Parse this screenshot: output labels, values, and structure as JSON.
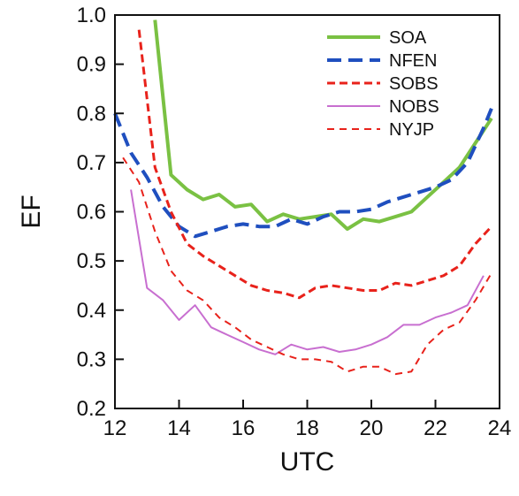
{
  "chart_data": {
    "type": "line",
    "xlabel": "UTC",
    "ylabel": "EF",
    "xlim": [
      12,
      24
    ],
    "ylim": [
      0.2,
      1.0
    ],
    "xticks": [
      "12",
      "14",
      "16",
      "18",
      "20",
      "22",
      "24"
    ],
    "yticks": [
      "0.2",
      "0.3",
      "0.4",
      "0.5",
      "0.6",
      "0.7",
      "0.8",
      "0.9",
      "1.0"
    ],
    "grid": false,
    "legend_position": "top-right",
    "series": [
      {
        "name": "SOA",
        "color": "#7ac143",
        "style": "solid",
        "x": [
          13.25,
          13.75,
          14.25,
          14.75,
          15.25,
          15.75,
          16.25,
          16.75,
          17.25,
          17.75,
          18.25,
          18.75,
          19.25,
          19.75,
          20.25,
          20.75,
          21.25,
          21.75,
          22.25,
          22.75,
          23.25,
          23.75
        ],
        "y": [
          0.99,
          0.675,
          0.645,
          0.625,
          0.635,
          0.61,
          0.615,
          0.58,
          0.595,
          0.585,
          0.59,
          0.595,
          0.565,
          0.585,
          0.58,
          0.59,
          0.6,
          0.63,
          0.66,
          0.69,
          0.74,
          0.79
        ]
      },
      {
        "name": "NFEN",
        "color": "#1f4fbf",
        "style": "dash",
        "x": [
          12.0,
          12.5,
          13.0,
          13.5,
          14.0,
          14.5,
          15.0,
          15.5,
          16.0,
          16.5,
          17.0,
          17.5,
          18.0,
          18.5,
          19.0,
          19.5,
          20.0,
          20.5,
          21.0,
          21.5,
          22.0,
          22.5,
          23.0,
          23.5,
          23.75
        ],
        "y": [
          0.8,
          0.72,
          0.67,
          0.61,
          0.57,
          0.55,
          0.56,
          0.57,
          0.575,
          0.57,
          0.57,
          0.585,
          0.575,
          0.59,
          0.6,
          0.6,
          0.605,
          0.62,
          0.63,
          0.64,
          0.65,
          0.665,
          0.7,
          0.77,
          0.81
        ]
      },
      {
        "name": "SOBS",
        "color": "#e8221b",
        "style": "shortdash",
        "x": [
          12.75,
          13.25,
          13.75,
          14.25,
          14.75,
          15.25,
          15.75,
          16.25,
          16.75,
          17.25,
          17.75,
          18.25,
          18.75,
          19.25,
          19.75,
          20.25,
          20.75,
          21.25,
          21.75,
          22.25,
          22.75,
          23.25,
          23.75
        ],
        "y": [
          0.97,
          0.69,
          0.6,
          0.535,
          0.51,
          0.49,
          0.47,
          0.45,
          0.44,
          0.435,
          0.425,
          0.445,
          0.45,
          0.445,
          0.44,
          0.44,
          0.455,
          0.45,
          0.46,
          0.47,
          0.49,
          0.535,
          0.57
        ]
      },
      {
        "name": "NOBS",
        "color": "#c86fd0",
        "style": "solid",
        "x": [
          12.5,
          13.0,
          13.5,
          14.0,
          14.5,
          15.0,
          15.5,
          16.0,
          16.5,
          17.0,
          17.5,
          18.0,
          18.5,
          19.0,
          19.5,
          20.0,
          20.5,
          21.0,
          21.5,
          22.0,
          22.5,
          23.0,
          23.5
        ],
        "y": [
          0.645,
          0.445,
          0.42,
          0.38,
          0.41,
          0.365,
          0.35,
          0.335,
          0.32,
          0.31,
          0.33,
          0.32,
          0.325,
          0.315,
          0.32,
          0.33,
          0.345,
          0.37,
          0.37,
          0.385,
          0.395,
          0.41,
          0.47
        ]
      },
      {
        "name": "NYJP",
        "color": "#e8221b",
        "style": "thindash",
        "x": [
          12.25,
          12.75,
          13.25,
          13.75,
          14.25,
          14.75,
          15.25,
          15.75,
          16.25,
          16.75,
          17.25,
          17.75,
          18.25,
          18.75,
          19.25,
          19.75,
          20.25,
          20.75,
          21.25,
          21.75,
          22.25,
          22.75,
          23.25,
          23.75
        ],
        "y": [
          0.71,
          0.66,
          0.56,
          0.48,
          0.44,
          0.42,
          0.385,
          0.365,
          0.34,
          0.325,
          0.31,
          0.3,
          0.3,
          0.295,
          0.275,
          0.285,
          0.285,
          0.27,
          0.275,
          0.33,
          0.36,
          0.375,
          0.42,
          0.475
        ]
      }
    ]
  }
}
